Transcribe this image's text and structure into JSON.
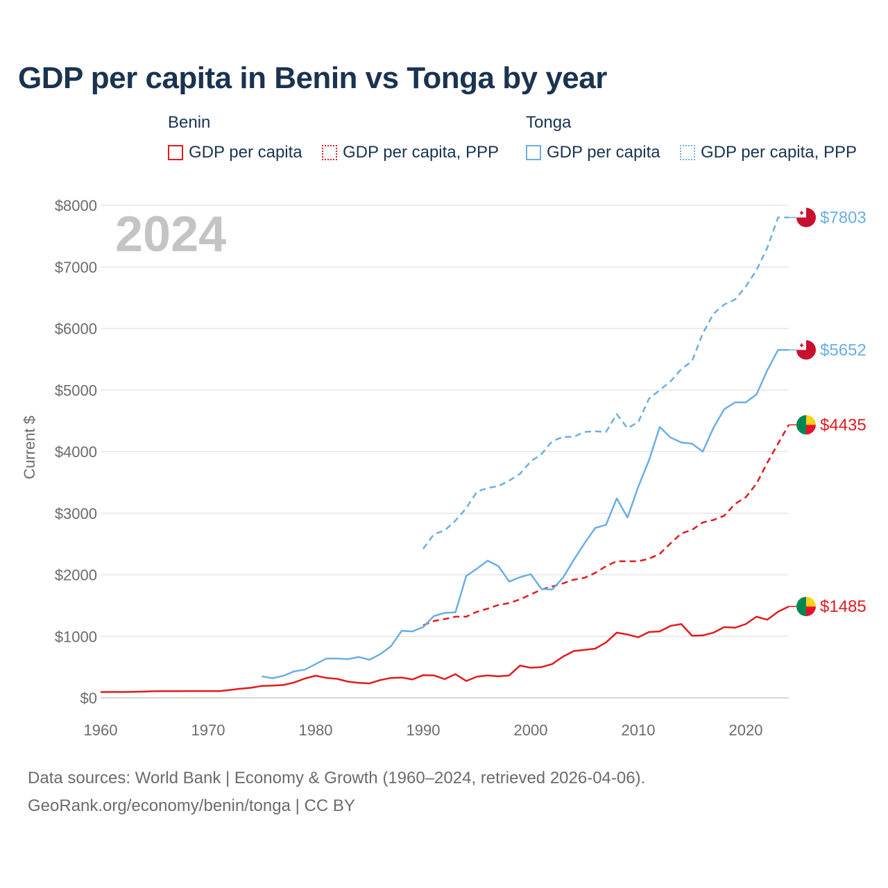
{
  "title": "GDP per capita in Benin vs Tonga by year",
  "legend": {
    "groups": [
      {
        "name": "Benin",
        "items": [
          {
            "label": "GDP per capita",
            "color": "#e31a1c",
            "style": "solid"
          },
          {
            "label": "GDP per capita, PPP",
            "color": "#e31a1c",
            "style": "dotted"
          }
        ]
      },
      {
        "name": "Tonga",
        "items": [
          {
            "label": "GDP per capita",
            "color": "#6aaee5",
            "style": "solid"
          },
          {
            "label": "GDP per capita, PPP",
            "color": "#6aaee5",
            "style": "dotted"
          }
        ]
      }
    ]
  },
  "footer": {
    "line1": "Data sources: World Bank | Economy & Growth (1960–2024, retrieved 2026-04-06).",
    "line2": "GeoRank.org/economy/benin/tonga | CC BY"
  },
  "chart_data": {
    "type": "line",
    "title": "GDP per capita in Benin vs Tonga by year",
    "xlabel": "",
    "ylabel": "Current $",
    "year_label": "2024",
    "xlim": [
      1960,
      2024
    ],
    "ylim": [
      0,
      8000
    ],
    "x_ticks": [
      {
        "value": 1960,
        "label": "1960"
      },
      {
        "value": 1970,
        "label": "1970"
      },
      {
        "value": 1980,
        "label": "1980"
      },
      {
        "value": 1990,
        "label": "1990"
      },
      {
        "value": 2000,
        "label": "2000"
      },
      {
        "value": 2010,
        "label": "2010"
      },
      {
        "value": 2020,
        "label": "2020"
      }
    ],
    "y_ticks": [
      {
        "value": 0,
        "label": "$0"
      },
      {
        "value": 1000,
        "label": "$1000"
      },
      {
        "value": 2000,
        "label": "$2000"
      },
      {
        "value": 3000,
        "label": "$3000"
      },
      {
        "value": 4000,
        "label": "$4000"
      },
      {
        "value": 5000,
        "label": "$5000"
      },
      {
        "value": 6000,
        "label": "$6000"
      },
      {
        "value": 7000,
        "label": "$7000"
      },
      {
        "value": 8000,
        "label": "$8000"
      }
    ],
    "grid": true,
    "series": [
      {
        "name": "Benin GDP per capita",
        "country": "Benin",
        "color": "#e31a1c",
        "dashed": false,
        "end_label": "$1485",
        "flag": "benin",
        "x": [
          1960,
          1961,
          1962,
          1963,
          1964,
          1965,
          1966,
          1967,
          1968,
          1969,
          1970,
          1971,
          1972,
          1973,
          1974,
          1975,
          1976,
          1977,
          1978,
          1979,
          1980,
          1981,
          1982,
          1983,
          1984,
          1985,
          1986,
          1987,
          1988,
          1989,
          1990,
          1991,
          1992,
          1993,
          1994,
          1995,
          1996,
          1997,
          1998,
          1999,
          2000,
          2001,
          2002,
          2003,
          2004,
          2005,
          2006,
          2007,
          2008,
          2009,
          2010,
          2011,
          2012,
          2013,
          2014,
          2015,
          2016,
          2017,
          2018,
          2019,
          2020,
          2021,
          2022,
          2023,
          2024
        ],
        "y": [
          95,
          97,
          96,
          99,
          103,
          108,
          110,
          109,
          112,
          112,
          112,
          110,
          128,
          150,
          165,
          195,
          200,
          210,
          250,
          315,
          360,
          325,
          310,
          265,
          245,
          235,
          290,
          325,
          330,
          300,
          370,
          365,
          305,
          385,
          275,
          345,
          365,
          350,
          365,
          525,
          490,
          500,
          550,
          670,
          760,
          780,
          800,
          900,
          1060,
          1030,
          985,
          1070,
          1080,
          1170,
          1200,
          1010,
          1015,
          1060,
          1150,
          1140,
          1200,
          1320,
          1270,
          1400,
          1485
        ]
      },
      {
        "name": "Benin GDP per capita, PPP",
        "country": "Benin",
        "color": "#e31a1c",
        "dashed": true,
        "end_label": "$4435",
        "flag": "benin",
        "x": [
          1990,
          1991,
          1992,
          1993,
          1994,
          1995,
          1996,
          1997,
          1998,
          1999,
          2000,
          2001,
          2002,
          2003,
          2004,
          2005,
          2006,
          2007,
          2008,
          2009,
          2010,
          2011,
          2012,
          2013,
          2014,
          2015,
          2016,
          2017,
          2018,
          2019,
          2020,
          2021,
          2022,
          2023,
          2024
        ],
        "y": [
          1180,
          1250,
          1280,
          1320,
          1320,
          1400,
          1450,
          1510,
          1540,
          1600,
          1680,
          1760,
          1810,
          1860,
          1920,
          1950,
          2030,
          2140,
          2220,
          2220,
          2220,
          2260,
          2340,
          2510,
          2670,
          2730,
          2850,
          2890,
          2960,
          3150,
          3260,
          3480,
          3820,
          4130,
          4435
        ]
      },
      {
        "name": "Tonga GDP per capita",
        "country": "Tonga",
        "color": "#6aaee5",
        "dashed": false,
        "end_label": "$5652",
        "flag": "tonga",
        "x": [
          1975,
          1976,
          1977,
          1978,
          1979,
          1980,
          1981,
          1982,
          1983,
          1984,
          1985,
          1986,
          1987,
          1988,
          1989,
          1990,
          1991,
          1992,
          1993,
          1994,
          1995,
          1996,
          1997,
          1998,
          1999,
          2000,
          2001,
          2002,
          2003,
          2004,
          2005,
          2006,
          2007,
          2008,
          2009,
          2010,
          2011,
          2012,
          2013,
          2014,
          2015,
          2016,
          2017,
          2018,
          2019,
          2020,
          2021,
          2022,
          2023,
          2024
        ],
        "y": [
          350,
          320,
          360,
          430,
          460,
          550,
          640,
          640,
          630,
          665,
          620,
          710,
          840,
          1090,
          1080,
          1150,
          1330,
          1380,
          1390,
          1980,
          2100,
          2230,
          2140,
          1890,
          1960,
          2010,
          1770,
          1760,
          1950,
          2240,
          2510,
          2760,
          2810,
          3240,
          2930,
          3430,
          3860,
          4400,
          4230,
          4150,
          4130,
          4000,
          4390,
          4690,
          4800,
          4800,
          4930,
          5320,
          5652,
          5652
        ]
      },
      {
        "name": "Tonga GDP per capita, PPP",
        "country": "Tonga",
        "color": "#6aaee5",
        "dashed": true,
        "end_label": "$7803",
        "flag": "tonga",
        "x": [
          1990,
          1991,
          1992,
          1993,
          1994,
          1995,
          1996,
          1997,
          1998,
          1999,
          2000,
          2001,
          2002,
          2003,
          2004,
          2005,
          2006,
          2007,
          2008,
          2009,
          2010,
          2011,
          2012,
          2013,
          2014,
          2015,
          2016,
          2017,
          2018,
          2019,
          2020,
          2021,
          2022,
          2023,
          2024
        ],
        "y": [
          2420,
          2660,
          2720,
          2880,
          3080,
          3350,
          3410,
          3440,
          3530,
          3640,
          3840,
          3960,
          4170,
          4240,
          4240,
          4320,
          4330,
          4320,
          4610,
          4380,
          4480,
          4860,
          5000,
          5140,
          5340,
          5470,
          5920,
          6240,
          6390,
          6470,
          6680,
          6950,
          7310,
          7803,
          7803
        ]
      }
    ]
  }
}
